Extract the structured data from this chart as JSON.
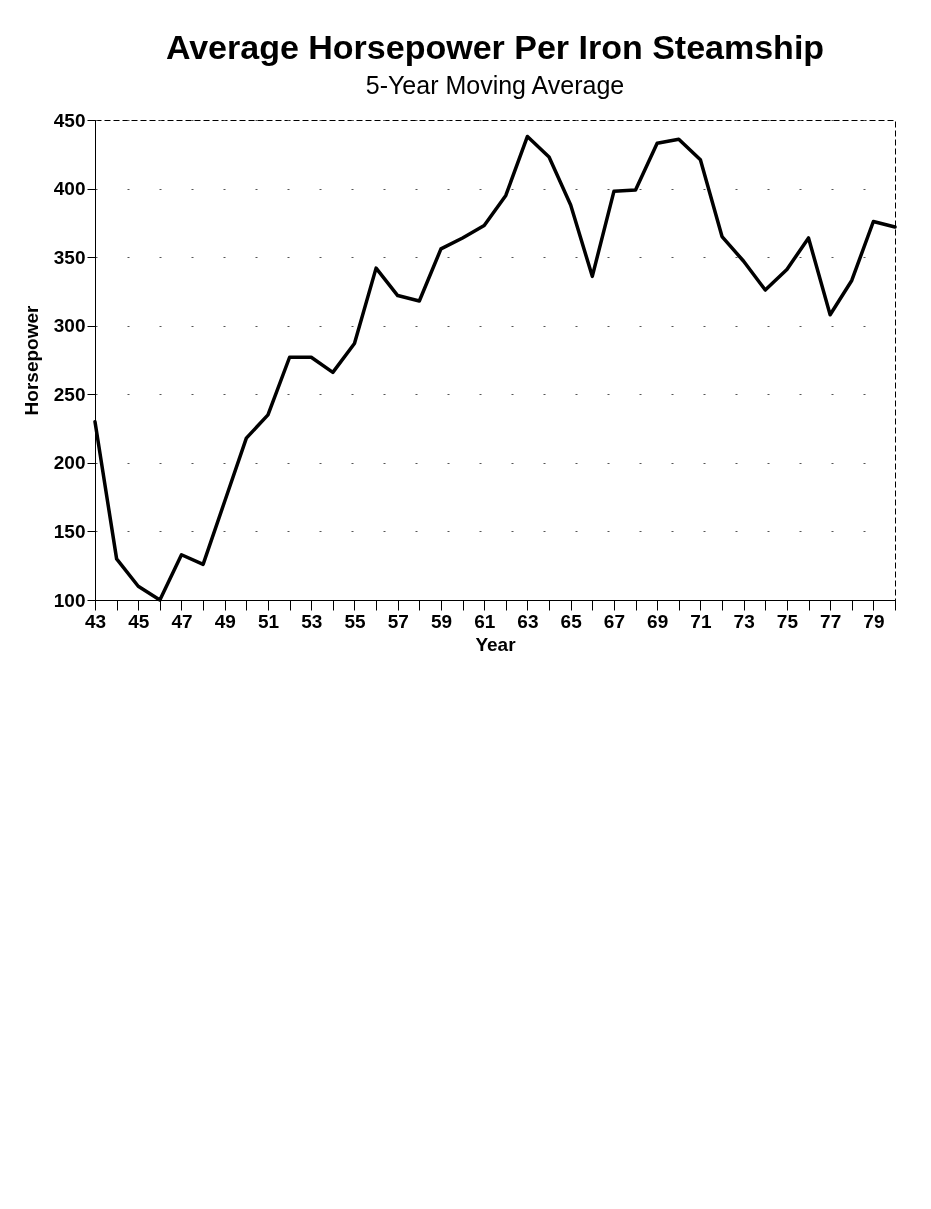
{
  "chart_data": {
    "type": "line",
    "title": "Average Horsepower Per Iron Steamship",
    "subtitle": "5-Year Moving Average",
    "xlabel": "Year",
    "ylabel": "Horsepower",
    "x": [
      43,
      44,
      45,
      46,
      47,
      48,
      49,
      50,
      51,
      52,
      53,
      54,
      55,
      56,
      57,
      58,
      59,
      60,
      61,
      62,
      63,
      64,
      65,
      66,
      67,
      68,
      69,
      70,
      71,
      72,
      73,
      74,
      75,
      76,
      77,
      78,
      79,
      80
    ],
    "series": [
      {
        "color": "#000000",
        "values": [
          230,
          130,
          110,
          100,
          133,
          126,
          172,
          218,
          235,
          277,
          277,
          266,
          287,
          342,
          322,
          318,
          356,
          364,
          373,
          395,
          438,
          423,
          388,
          336,
          398,
          399,
          433,
          436,
          421,
          365,
          347,
          326,
          341,
          364,
          308,
          333,
          376,
          372
        ]
      }
    ],
    "xlim": [
      43,
      80
    ],
    "xticks": [
      43,
      {
        "value": 44,
        "label": null
      },
      45,
      {
        "value": 46,
        "label": null
      },
      47,
      {
        "value": 48,
        "label": null
      },
      49,
      {
        "value": 50,
        "label": null
      },
      51,
      {
        "value": 52,
        "label": null
      },
      53,
      {
        "value": 54,
        "label": null
      },
      55,
      {
        "value": 56,
        "label": null
      },
      57,
      {
        "value": 58,
        "label": null
      },
      59,
      {
        "value": 60,
        "label": null
      },
      61,
      {
        "value": 62,
        "label": null
      },
      63,
      {
        "value": 64,
        "label": null
      },
      65,
      {
        "value": 66,
        "label": null
      },
      67,
      {
        "value": 68,
        "label": null
      },
      69,
      {
        "value": 70,
        "label": null
      },
      71,
      {
        "value": 72,
        "label": null
      },
      73,
      {
        "value": 74,
        "label": null
      },
      75,
      {
        "value": 76,
        "label": null
      },
      77,
      {
        "value": 78,
        "label": null
      },
      79,
      {
        "value": 80,
        "label": null
      }
    ],
    "ylim": [
      100,
      450
    ],
    "yticks": [
      100,
      150,
      200,
      250,
      300,
      350,
      400,
      450
    ],
    "grid": "y",
    "marker": "none",
    "line_style": "solid"
  }
}
